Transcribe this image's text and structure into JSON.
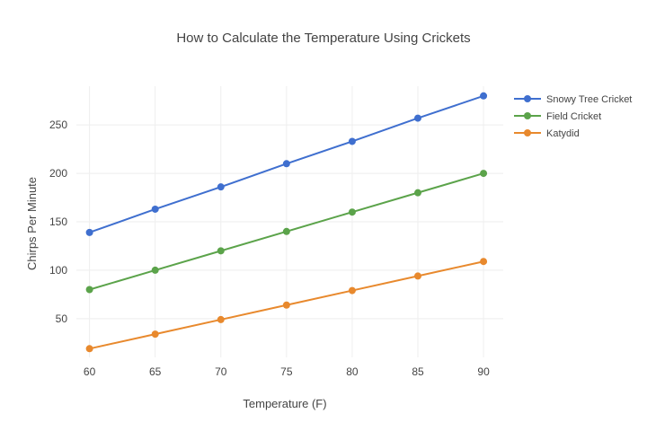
{
  "chart_data": {
    "type": "line",
    "title": "How to Calculate the Temperature Using Crickets",
    "xlabel": "Temperature (F)",
    "ylabel": "Chirps Per Minute",
    "x": [
      60,
      65,
      70,
      75,
      80,
      85,
      90
    ],
    "xticks": [
      "60",
      "65",
      "70",
      "75",
      "80",
      "85",
      "90"
    ],
    "yticks": [
      50,
      100,
      150,
      200,
      250
    ],
    "xlim": [
      59,
      91.5
    ],
    "ylim": [
      10,
      290
    ],
    "grid": true,
    "legend_position": "top-right",
    "series": [
      {
        "name": "Snowy Tree Cricket",
        "color": "#3f6fcf",
        "values": [
          139,
          163,
          186,
          210,
          233,
          257,
          280
        ]
      },
      {
        "name": "Field Cricket",
        "color": "#5ba34a",
        "values": [
          80,
          100,
          120,
          140,
          160,
          180,
          200
        ]
      },
      {
        "name": "Katydid",
        "color": "#e8892d",
        "values": [
          19,
          34,
          49,
          64,
          79,
          94,
          109
        ]
      }
    ]
  }
}
